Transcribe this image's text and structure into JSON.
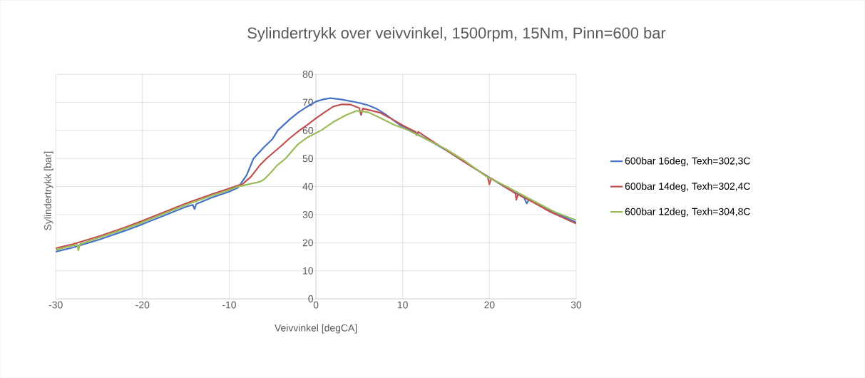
{
  "chart_data": {
    "type": "line",
    "title": "Sylindertrykk over veivvinkel, 1500rpm, 15Nm, Pinn=600 bar",
    "xlabel": "Veivvinkel [degCA]",
    "ylabel": "Sylindertrykk [bar]",
    "xlim": [
      -30,
      30
    ],
    "ylim": [
      0,
      80
    ],
    "xticks": [
      -30,
      -20,
      -10,
      0,
      10,
      20,
      30
    ],
    "yticks": [
      0,
      10,
      20,
      30,
      40,
      50,
      60,
      70,
      80
    ],
    "grid": true,
    "legend": "right",
    "marker": "none",
    "line_style": "solid",
    "series": [
      {
        "name": "600bar 16deg, Texh=302,3C",
        "color": "#4472c4",
        "x": [
          -30,
          -28,
          -25,
          -22,
          -20,
          -17,
          -15,
          -14.2,
          -14,
          -13.8,
          -12,
          -10,
          -9,
          -8,
          -7.2,
          -6,
          -5,
          -4.4,
          -3,
          -2,
          -1,
          0,
          1,
          1.7,
          3,
          4.7,
          6,
          7,
          8,
          9,
          10,
          11,
          13,
          15,
          17,
          20,
          22,
          24,
          24.3,
          24.6,
          27,
          30
        ],
        "values": [
          16.8,
          18.3,
          21.1,
          24.3,
          26.6,
          30.3,
          32.8,
          33.5,
          32,
          33.8,
          36.1,
          38.2,
          39.6,
          44,
          50,
          54,
          57,
          60,
          64,
          66.5,
          68.5,
          70.3,
          71.2,
          71.5,
          71,
          70,
          69,
          67.7,
          65.8,
          63.5,
          61.3,
          59.8,
          56.5,
          53,
          49,
          43.2,
          39.5,
          36,
          34,
          35.6,
          31.5,
          27.2
        ]
      },
      {
        "name": "600bar 14deg, Texh=302,4C",
        "color": "#c0504d",
        "x": [
          -30,
          -28,
          -25,
          -22,
          -20,
          -17,
          -15,
          -12,
          -10,
          -9,
          -8.5,
          -7.5,
          -6.5,
          -5.7,
          -4,
          -3,
          -1.9,
          -1,
          0,
          1,
          2,
          3,
          4,
          5,
          5.2,
          5.4,
          6.5,
          7.4,
          8.5,
          10,
          11.5,
          11.6,
          11.8,
          13,
          15,
          17,
          19.8,
          20,
          20.2,
          22,
          23,
          23.1,
          23.3,
          25,
          27,
          30
        ],
        "values": [
          18,
          19.5,
          22.3,
          25.5,
          27.8,
          31.5,
          34,
          37.3,
          39.3,
          40.4,
          40.8,
          43.5,
          47.5,
          50,
          54.5,
          57.3,
          60,
          62,
          64.3,
          66.5,
          68.5,
          69.3,
          69.2,
          68,
          65.5,
          67.8,
          67,
          66.3,
          64.5,
          61.8,
          59.5,
          58.3,
          59.5,
          57,
          53,
          49,
          43.5,
          40.8,
          43,
          39.5,
          37.5,
          35.3,
          37.3,
          34.5,
          31,
          26.8
        ]
      },
      {
        "name": "600bar 12deg, Texh=304,8C",
        "color": "#9bbb59",
        "x": [
          -30,
          -28,
          -27.5,
          -27.4,
          -27.2,
          -25,
          -22,
          -20,
          -17,
          -15,
          -12,
          -10,
          -9,
          -7.5,
          -6.5,
          -6,
          -5.2,
          -4.5,
          -3.5,
          -2.1,
          -1,
          0.6,
          2,
          3.5,
          4.7,
          6,
          7.4,
          9,
          10.2,
          12,
          15,
          17,
          19.7,
          22,
          25,
          27.5,
          30
        ],
        "values": [
          17.5,
          19,
          19.3,
          17.3,
          19.5,
          21.8,
          25,
          27.3,
          31,
          33.5,
          36.8,
          38.8,
          40,
          41,
          41.7,
          42.5,
          45,
          47.5,
          50,
          55,
          57.5,
          60,
          63,
          65.5,
          67,
          66.5,
          64.5,
          62,
          60.7,
          58,
          53.3,
          49.5,
          43.5,
          40,
          35,
          31,
          28
        ]
      }
    ]
  }
}
